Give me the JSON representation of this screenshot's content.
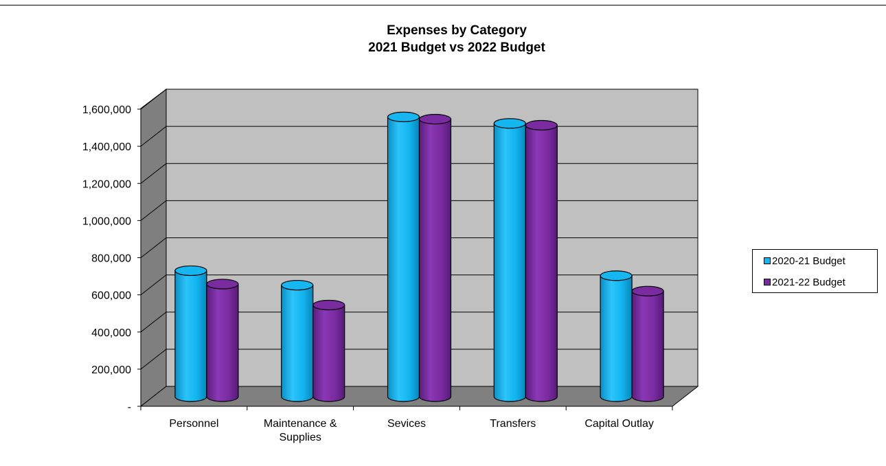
{
  "chart_data": {
    "type": "bar",
    "title": "Expenses by Category",
    "subtitle": "2021 Budget vs 2022 Budget",
    "categories": [
      "Personnel",
      "Maintenance & Supplies",
      "Sevices",
      "Transfers",
      "Capital Outlay"
    ],
    "series": [
      {
        "name": "2020-21 Budget",
        "color": "#16b6f0",
        "values": [
          682000,
          604000,
          1510000,
          1475000,
          655000
        ]
      },
      {
        "name": "2021-22 Budget",
        "color": "#7a2ba0",
        "values": [
          610000,
          497000,
          1498000,
          1465000,
          572000
        ]
      }
    ],
    "ylim": [
      0,
      1600000
    ],
    "yticks": [
      0,
      200000,
      400000,
      600000,
      800000,
      1000000,
      1200000,
      1400000,
      1600000
    ],
    "ytick_labels": [
      "-",
      "200,000",
      "400,000",
      "600,000",
      "800,000",
      "1,000,000",
      "1,200,000",
      "1,400,000",
      "1,600,000"
    ],
    "grid": true,
    "legend_position": "right",
    "style": "3d-cylinder"
  }
}
